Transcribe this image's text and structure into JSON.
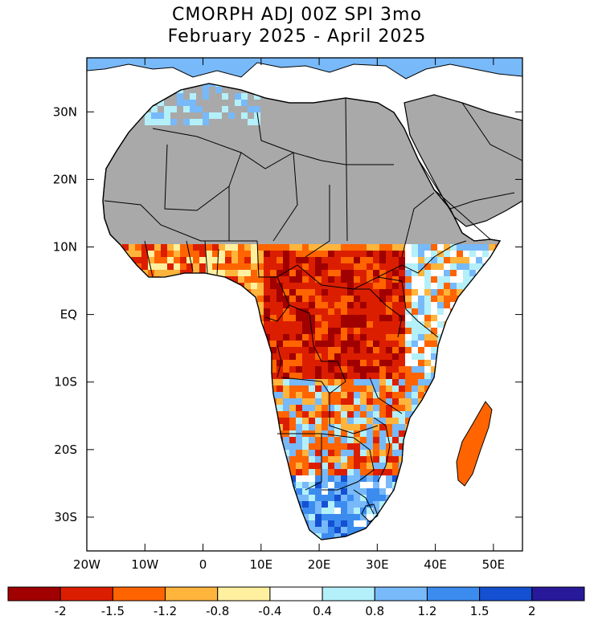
{
  "title": {
    "line1": "CMORPH ADJ 00Z SPI 3mo",
    "line2": "February 2025 - April 2025"
  },
  "map": {
    "lon_range": [
      -20,
      55
    ],
    "lat_range": [
      -35,
      38
    ],
    "lat_ticks": [
      "30N",
      "20N",
      "10N",
      "EQ",
      "10S",
      "20S",
      "30S"
    ],
    "lon_ticks": [
      "20W",
      "10W",
      "0",
      "10E",
      "20E",
      "30E",
      "40E",
      "50E"
    ],
    "no_data_color": "#a9a9a9",
    "ocean_color": "#ffffff"
  },
  "colorbar": {
    "colors": [
      "#a00000",
      "#dc1e00",
      "#ff6400",
      "#ffb43c",
      "#fff0a0",
      "#ffffff",
      "#b4f0fa",
      "#78b9fa",
      "#3c8cf0",
      "#1450d2",
      "#28199b"
    ],
    "labels": [
      "-2",
      "-1.5",
      "-1.2",
      "-0.8",
      "-0.4",
      "0.4",
      "0.8",
      "1.2",
      "1.5",
      "2"
    ]
  }
}
